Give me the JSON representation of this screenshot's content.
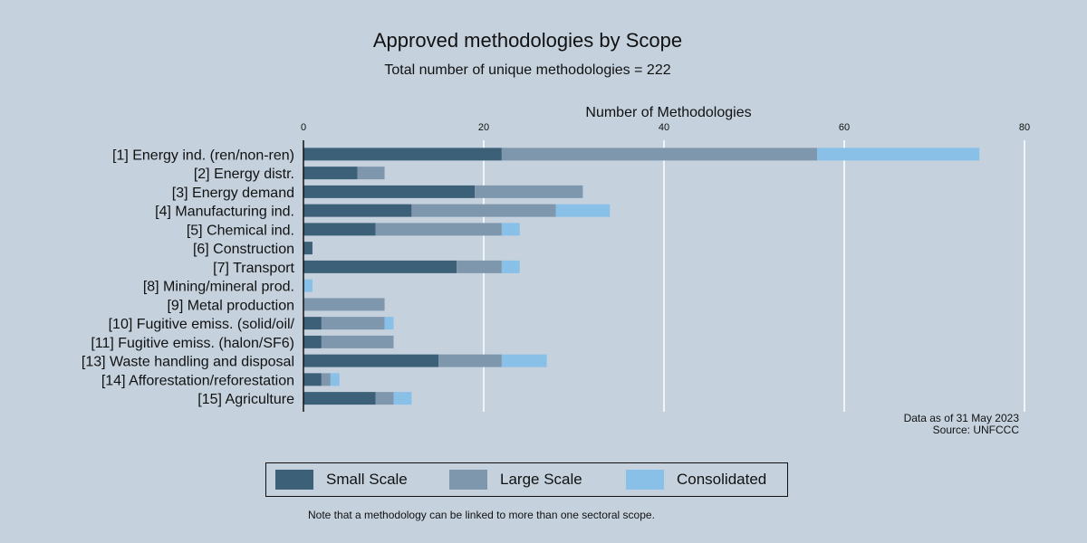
{
  "chart_data": {
    "type": "bar",
    "orientation": "horizontal",
    "stacked": true,
    "title": "Approved methodologies by Scope",
    "subtitle": "Total number of unique methodologies = 222",
    "xlabel": "Number of Methodologies",
    "xlim": [
      0,
      80
    ],
    "xticks": [
      "0",
      "20",
      "40",
      "60",
      "80"
    ],
    "x_axis_position": "top",
    "grid": "vertical",
    "legend_position": "bottom",
    "categories": [
      "[1] Energy ind. (ren/non-ren)",
      "[2] Energy distr.",
      "[3] Energy demand",
      "[4] Manufacturing ind.",
      "[5] Chemical ind.",
      "[6] Construction",
      "[7] Transport",
      "[8] Mining/mineral prod.",
      "[9] Metal production",
      "[10] Fugitive emiss. (solid/oil/",
      "[11] Fugitive emiss. (halon/SF6)",
      "[13] Waste handling and disposal",
      "[14] Afforestation/reforestation",
      "[15] Agriculture"
    ],
    "series": [
      {
        "name": "Small Scale",
        "color": "#3d6079",
        "values": [
          22,
          6,
          19,
          12,
          8,
          1,
          17,
          0,
          0,
          2,
          2,
          15,
          2,
          8
        ]
      },
      {
        "name": "Large Scale",
        "color": "#7f97ac",
        "values": [
          35,
          3,
          12,
          16,
          14,
          0,
          5,
          0,
          9,
          7,
          8,
          7,
          1,
          2
        ]
      },
      {
        "name": "Consolidated",
        "color": "#88c0e8",
        "values": [
          18,
          0,
          0,
          6,
          2,
          0,
          2,
          1,
          0,
          1,
          0,
          5,
          1,
          2
        ]
      }
    ],
    "annotations": [
      "Data as of 31 May 2023",
      "Source: UNFCCC"
    ]
  },
  "note": "Note that a methodology can be linked to more than one sectoral scope."
}
